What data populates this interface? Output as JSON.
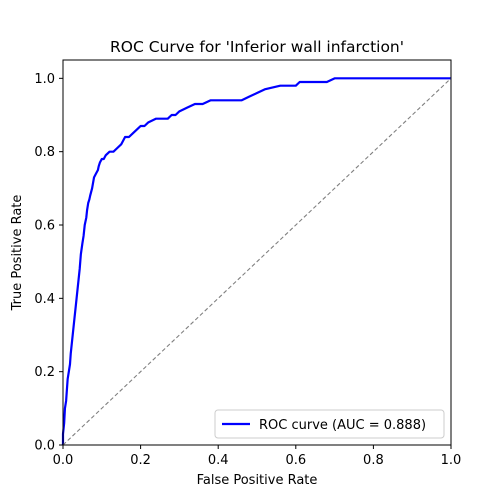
{
  "chart_data": {
    "type": "line",
    "title": "ROC Curve for 'Inferior wall infarction'",
    "xlabel": "False Positive Rate",
    "ylabel": "True Positive Rate",
    "xlim": [
      0.0,
      1.0
    ],
    "ylim": [
      0.0,
      1.05
    ],
    "x_ticks": [
      "0.0",
      "0.2",
      "0.4",
      "0.6",
      "0.8",
      "1.0"
    ],
    "y_ticks": [
      "0.0",
      "0.2",
      "0.4",
      "0.6",
      "0.8",
      "1.0"
    ],
    "grid": false,
    "legend_position": "bottom-right",
    "series": [
      {
        "name": "ROC curve (AUC = 0.888)",
        "color": "#0000ff",
        "x": [
          0.0,
          0.0,
          0.003,
          0.005,
          0.008,
          0.01,
          0.012,
          0.015,
          0.018,
          0.02,
          0.022,
          0.025,
          0.028,
          0.03,
          0.032,
          0.035,
          0.038,
          0.04,
          0.043,
          0.046,
          0.05,
          0.053,
          0.056,
          0.06,
          0.062,
          0.065,
          0.068,
          0.07,
          0.075,
          0.08,
          0.085,
          0.09,
          0.092,
          0.095,
          0.1,
          0.105,
          0.11,
          0.12,
          0.13,
          0.14,
          0.15,
          0.16,
          0.17,
          0.18,
          0.19,
          0.2,
          0.21,
          0.22,
          0.24,
          0.26,
          0.27,
          0.28,
          0.29,
          0.3,
          0.32,
          0.34,
          0.36,
          0.38,
          0.4,
          0.42,
          0.44,
          0.46,
          0.48,
          0.5,
          0.52,
          0.56,
          0.6,
          0.61,
          0.65,
          0.68,
          0.7,
          0.72,
          0.76,
          0.8,
          0.9,
          1.0
        ],
        "y": [
          0.0,
          0.03,
          0.06,
          0.1,
          0.12,
          0.15,
          0.18,
          0.2,
          0.22,
          0.25,
          0.27,
          0.3,
          0.33,
          0.35,
          0.37,
          0.4,
          0.43,
          0.45,
          0.48,
          0.52,
          0.55,
          0.57,
          0.6,
          0.62,
          0.64,
          0.66,
          0.67,
          0.68,
          0.7,
          0.73,
          0.74,
          0.75,
          0.76,
          0.77,
          0.78,
          0.78,
          0.79,
          0.8,
          0.8,
          0.81,
          0.82,
          0.84,
          0.84,
          0.85,
          0.86,
          0.87,
          0.87,
          0.88,
          0.89,
          0.89,
          0.89,
          0.9,
          0.9,
          0.91,
          0.92,
          0.93,
          0.93,
          0.94,
          0.94,
          0.94,
          0.94,
          0.94,
          0.95,
          0.96,
          0.97,
          0.98,
          0.98,
          0.99,
          0.99,
          0.99,
          1.0,
          1.0,
          1.0,
          1.0,
          1.0,
          1.0
        ]
      },
      {
        "name": "",
        "color": "#808080",
        "style": "dashed",
        "x": [
          0.0,
          1.0
        ],
        "y": [
          0.0,
          1.0
        ]
      }
    ]
  }
}
